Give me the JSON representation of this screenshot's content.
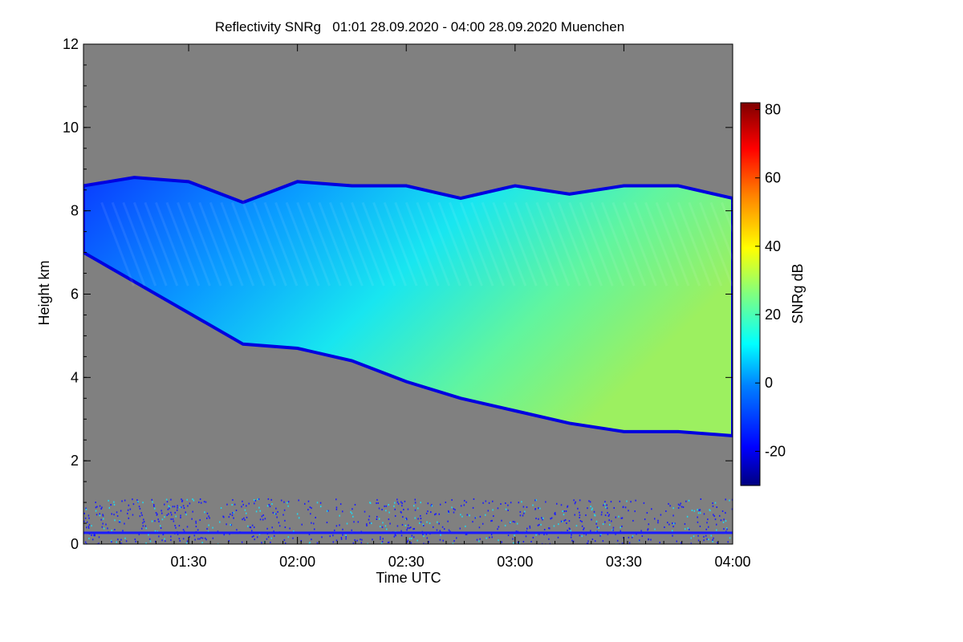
{
  "chart_data": {
    "type": "heatmap",
    "title": "Reflectivity SNRg   01:01 28.09.2020 - 04:00 28.09.2020 Muenchen",
    "xlabel": "Time UTC",
    "ylabel": "Height km",
    "x_range": [
      "01:01",
      "04:00"
    ],
    "ylim": [
      0,
      12
    ],
    "x_ticks": [
      "01:30",
      "02:00",
      "02:30",
      "03:00",
      "03:30",
      "04:00"
    ],
    "y_ticks": [
      "0",
      "2",
      "4",
      "6",
      "8",
      "10",
      "12"
    ],
    "colorbar": {
      "label": "SNRg dB",
      "range": [
        -30,
        82
      ],
      "ticks": [
        "-20",
        "0",
        "20",
        "40",
        "60",
        "80"
      ]
    },
    "background_color": "#808080",
    "cloud": {
      "top_km": [
        [
          "01:01",
          8.6
        ],
        [
          "01:15",
          8.8
        ],
        [
          "01:30",
          8.7
        ],
        [
          "01:45",
          8.2
        ],
        [
          "02:00",
          8.7
        ],
        [
          "02:15",
          8.6
        ],
        [
          "02:30",
          8.6
        ],
        [
          "02:45",
          8.3
        ],
        [
          "03:00",
          8.6
        ],
        [
          "03:15",
          8.4
        ],
        [
          "03:30",
          8.6
        ],
        [
          "03:45",
          8.6
        ],
        [
          "04:00",
          8.3
        ]
      ],
      "base_km": [
        [
          "01:01",
          7.0
        ],
        [
          "01:45",
          4.8
        ],
        [
          "02:00",
          4.7
        ],
        [
          "02:15",
          4.4
        ],
        [
          "02:30",
          3.9
        ],
        [
          "02:45",
          3.5
        ],
        [
          "03:00",
          3.2
        ],
        [
          "03:15",
          2.9
        ],
        [
          "03:30",
          2.7
        ],
        [
          "03:45",
          2.7
        ],
        [
          "04:00",
          2.6
        ]
      ],
      "core_snr_db": 25
    },
    "ground_clutter_km": [
      0,
      1.1
    ]
  }
}
